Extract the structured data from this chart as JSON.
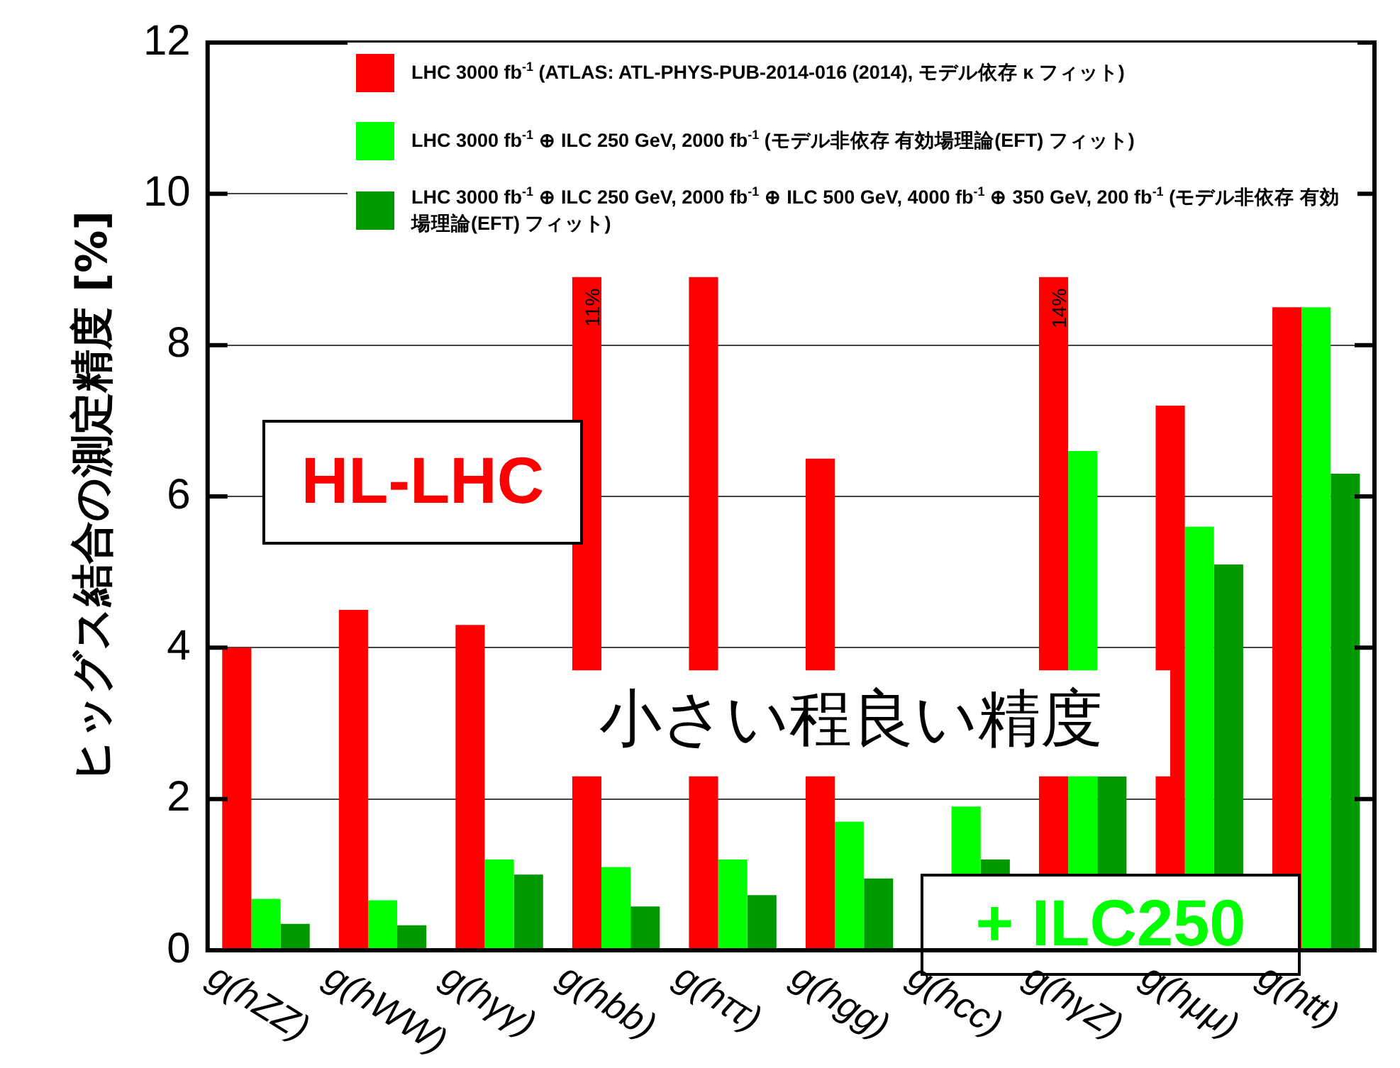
{
  "chart_data": {
    "type": "bar",
    "ylabel": "ヒッグス結合の測定精度 [%]",
    "categories": [
      "g(hZZ)",
      "g(hWW)",
      "g(hγγ)",
      "g(hbb)",
      "g(hττ)",
      "g(hgg)",
      "g(hcc)",
      "g(hγZ)",
      "g(hμμ)",
      "g(htt)"
    ],
    "series": [
      {
        "name": "LHC 3000 fb$^{-1}$ (ATLAS: ATL-PHYS-PUB-2014-016 (2014), モデル依存 κ フィット)",
        "color": "#ff0000",
        "values": [
          4.0,
          4.5,
          4.3,
          8.9,
          8.9,
          6.5,
          null,
          8.9,
          7.2,
          8.5
        ]
      },
      {
        "name": "LHC 3000 fb$^{-1}$ ⊕ ILC 250 GeV, 2000 fb$^{-1}$ (モデル非依存 有効場理論(EFT) フィット)",
        "color": "#00ff00",
        "values": [
          0.68,
          0.66,
          1.2,
          1.1,
          1.2,
          1.7,
          1.9,
          6.6,
          5.6,
          8.5
        ]
      },
      {
        "name": "LHC 3000 fb$^{-1}$ ⊕ ILC 250 GeV, 2000 fb$^{-1}$ ⊕ ILC 500 GeV, 4000 fb$^{-1}$ ⊕ 350 GeV, 200 fb$^{-1}$ (モデル非依存 有効場理論(EFT) フィット)",
        "color": "#009900",
        "values": [
          0.35,
          0.33,
          1.0,
          0.58,
          0.73,
          0.95,
          1.2,
          2.3,
          5.1,
          6.3
        ]
      }
    ],
    "ylim": [
      0,
      12
    ],
    "yticks": [
      0,
      2,
      4,
      6,
      8,
      10,
      12
    ],
    "grid": "y",
    "legend": "top",
    "annotations": [
      "11%",
      "14%",
      "HL-LHC",
      "小さい程良い精度",
      "+ ILC250"
    ]
  }
}
